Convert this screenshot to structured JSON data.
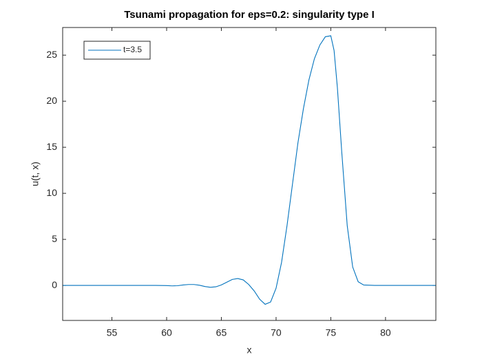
{
  "chart_data": {
    "type": "line",
    "title": "Tsunami propagation for eps=0.2: singularity type I",
    "x_label": "x",
    "y_label": "u(t, x)",
    "x": [
      50.5,
      52,
      54,
      56,
      58,
      59,
      60,
      60.5,
      61,
      61.5,
      62,
      62.5,
      63,
      63.5,
      64,
      64.5,
      65,
      65.5,
      66,
      66.5,
      67,
      67.5,
      68,
      68.5,
      69,
      69.5,
      70,
      70.5,
      71,
      71.5,
      72,
      72.5,
      73,
      73.5,
      74,
      74.5,
      75,
      75.3,
      75.6,
      76,
      76.5,
      77,
      77.5,
      78,
      79,
      80,
      82,
      84.6
    ],
    "series": [
      {
        "name": "t=3.5",
        "color": "#0072bd",
        "values": [
          0,
          0,
          0,
          0,
          0,
          0,
          -0.02,
          -0.05,
          -0.03,
          0.05,
          0.1,
          0.1,
          0.02,
          -0.12,
          -0.2,
          -0.15,
          0.05,
          0.35,
          0.65,
          0.75,
          0.6,
          0.1,
          -0.6,
          -1.5,
          -2.05,
          -1.8,
          -0.3,
          2.5,
          6.5,
          11,
          15.5,
          19.2,
          22.3,
          24.6,
          26.1,
          27.0,
          27.1,
          25.5,
          21.5,
          14.5,
          6.5,
          2.0,
          0.4,
          0.05,
          0,
          0,
          0,
          0
        ]
      }
    ],
    "xlim": [
      50.5,
      84.6
    ],
    "ylim": [
      -3.8,
      28
    ],
    "xticks": [
      55,
      60,
      65,
      70,
      75,
      80
    ],
    "yticks": [
      0,
      5,
      10,
      15,
      20,
      25
    ],
    "legend": "upper left",
    "grid": false
  }
}
